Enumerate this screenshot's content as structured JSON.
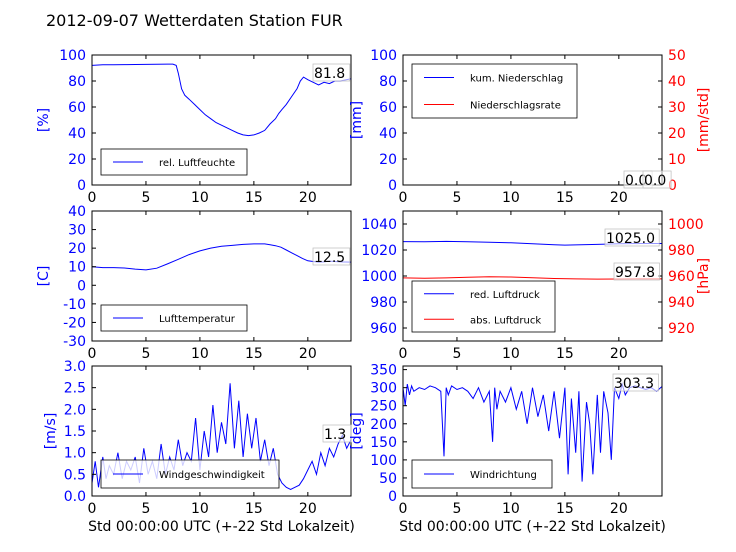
{
  "title": "2012-09-07 Wetterdaten Station FUR",
  "colors": {
    "blue": "#0000ff",
    "red": "#ff0000",
    "black": "#000000",
    "panel_border": "#000000"
  },
  "chart_data": [
    {
      "id": "humidity",
      "type": "line",
      "x_range": [
        0,
        24
      ],
      "x_ticks": [
        0,
        5,
        10,
        15,
        20
      ],
      "ylabel": "[%]",
      "ylabel_color": "blue",
      "ylim": [
        0,
        100
      ],
      "y_ticks": [
        0,
        20,
        40,
        60,
        80,
        100
      ],
      "tick_color": "blue",
      "last_value_label": "81.8",
      "series": [
        {
          "name": "rel. Luftfeuchte",
          "color": "blue",
          "x": [
            0,
            1,
            2,
            3,
            4,
            5,
            6,
            7,
            7.5,
            7.8,
            8,
            8.3,
            8.6,
            9,
            9.5,
            10,
            10.5,
            11,
            11.5,
            12,
            12.5,
            13,
            13.5,
            14,
            14.5,
            15,
            15.5,
            16,
            16.5,
            17,
            17.3,
            17.6,
            18,
            18.5,
            19,
            19.3,
            19.6,
            20,
            20.5,
            21,
            21.5,
            22,
            22.5,
            23,
            24
          ],
          "values": [
            92,
            92.5,
            92.5,
            92.6,
            92.7,
            92.8,
            92.9,
            93,
            93,
            92,
            86,
            74,
            69,
            66,
            62,
            58,
            54,
            51,
            48,
            46,
            44,
            42,
            40,
            38.5,
            38,
            38.5,
            40,
            42,
            47,
            51,
            55,
            58,
            62,
            68,
            74,
            80,
            83,
            81,
            79,
            77,
            79,
            78,
            80,
            80,
            81.8
          ]
        }
      ]
    },
    {
      "id": "precipitation",
      "type": "line",
      "x_range": [
        0,
        24
      ],
      "x_ticks": [
        0,
        5,
        10,
        15,
        20
      ],
      "ylabel": "[mm]",
      "ylabel_color": "blue",
      "ylim": [
        0,
        100
      ],
      "y_ticks": [
        0,
        20,
        40,
        60,
        80,
        100
      ],
      "tick_color": "blue",
      "ylabel_right": "[mm/std]",
      "ylim_right": [
        0,
        50
      ],
      "y_ticks_right": [
        0,
        10,
        20,
        30,
        40,
        50
      ],
      "last_value_label": "0.0",
      "last_value_label_2": "0.0",
      "series": [
        {
          "name": "kum. Niederschlag",
          "color": "blue",
          "axis": "left",
          "x": [
            0,
            24
          ],
          "values": [
            0,
            0
          ]
        },
        {
          "name": "Niederschlagsrate",
          "color": "red",
          "axis": "right",
          "x": [
            0,
            24
          ],
          "values": [
            0,
            0
          ]
        }
      ]
    },
    {
      "id": "temperature",
      "type": "line",
      "x_range": [
        0,
        24
      ],
      "x_ticks": [
        0,
        5,
        10,
        15,
        20
      ],
      "ylabel": "[C]",
      "ylabel_color": "blue",
      "ylim": [
        -30,
        40
      ],
      "y_ticks": [
        -30,
        -20,
        -10,
        0,
        10,
        20,
        30,
        40
      ],
      "tick_color": "blue",
      "last_value_label": "12.5",
      "series": [
        {
          "name": "Lufttemperatur",
          "color": "blue",
          "x": [
            0,
            1,
            2,
            3,
            4,
            5,
            6,
            7,
            8,
            9,
            10,
            11,
            12,
            13,
            14,
            15,
            16,
            16.5,
            17,
            17.5,
            18,
            18.5,
            19,
            19.5,
            20,
            20.5,
            21,
            21.5,
            22,
            22.5,
            23,
            24
          ],
          "values": [
            10,
            9.5,
            9.5,
            9.3,
            8.7,
            8.3,
            9.2,
            11.5,
            14,
            16.5,
            18.5,
            20,
            21,
            21.5,
            22,
            22.3,
            22.3,
            21.8,
            21.3,
            20.5,
            19,
            17.5,
            16,
            14.5,
            13.2,
            12.8,
            12.5,
            12.6,
            13,
            12.8,
            12.6,
            12.5
          ]
        }
      ]
    },
    {
      "id": "pressure",
      "type": "line",
      "x_range": [
        0,
        24
      ],
      "x_ticks": [
        0,
        5,
        10,
        15,
        20
      ],
      "ylim": [
        950,
        1050
      ],
      "y_ticks": [
        960,
        980,
        1000,
        1020,
        1040
      ],
      "tick_color": "blue",
      "ylabel_right": "[hPa]",
      "ylim_right": [
        910,
        1010
      ],
      "y_ticks_right": [
        920,
        940,
        960,
        980,
        1000
      ],
      "last_value_label": "1025.0",
      "last_value_label_2": "957.8",
      "series": [
        {
          "name": "red. Luftdruck",
          "color": "blue",
          "axis": "left",
          "x": [
            0,
            2,
            4,
            6,
            8,
            10,
            12,
            14,
            15,
            16,
            18,
            20,
            22,
            24
          ],
          "values": [
            1026.5,
            1026.3,
            1026.6,
            1026.3,
            1026,
            1025.5,
            1024.8,
            1024,
            1023.8,
            1023.9,
            1024.3,
            1024.8,
            1025,
            1025
          ]
        },
        {
          "name": "abs. Luftdruck",
          "color": "red",
          "axis": "right",
          "x": [
            0,
            2,
            4,
            6,
            8,
            10,
            12,
            14,
            16,
            18,
            20,
            22,
            24
          ],
          "values": [
            958.5,
            958.3,
            958.5,
            959,
            959.4,
            959.2,
            958.7,
            958.1,
            957.8,
            957.6,
            957.7,
            957.8,
            957.8
          ]
        }
      ]
    },
    {
      "id": "windspeed",
      "type": "line",
      "x_range": [
        0,
        24
      ],
      "x_ticks": [
        0,
        5,
        10,
        15,
        20
      ],
      "xlabel": "Std 00:00:00 UTC (+-22 Std Lokalzeit)",
      "ylabel": "[m/s]",
      "ylabel_color": "blue",
      "ylim": [
        0,
        3.0
      ],
      "y_ticks": [
        "0.0",
        "0.5",
        "1.0",
        "1.5",
        "2.0",
        "2.5",
        "3.0"
      ],
      "tick_color": "blue",
      "last_value_label": "1.3",
      "series": [
        {
          "name": "Windgeschwindigkeit",
          "color": "blue",
          "x": [
            0,
            0.3,
            0.6,
            1,
            1.3,
            1.6,
            2,
            2.4,
            2.8,
            3.2,
            3.6,
            4,
            4.4,
            4.8,
            5.2,
            5.6,
            6,
            6.4,
            6.8,
            7.2,
            7.6,
            8,
            8.4,
            8.8,
            9.2,
            9.6,
            10,
            10.4,
            10.8,
            11.2,
            11.6,
            12,
            12.4,
            12.8,
            13.2,
            13.6,
            14,
            14.4,
            14.8,
            15.2,
            15.6,
            16,
            16.4,
            16.8,
            17.2,
            17.6,
            18,
            18.4,
            18.8,
            19.2,
            19.6,
            20,
            20.4,
            20.8,
            21.2,
            21.6,
            22,
            22.4,
            22.8,
            23.2,
            23.6,
            24
          ],
          "values": [
            0.3,
            0.8,
            0.2,
            0.9,
            0.4,
            0.7,
            0.5,
            1.0,
            0.4,
            0.8,
            0.6,
            0.9,
            0.3,
            1.1,
            0.5,
            0.8,
            0.4,
            1.2,
            0.5,
            0.9,
            0.6,
            1.3,
            0.7,
            1.0,
            0.8,
            1.8,
            0.6,
            1.5,
            0.9,
            2.1,
            1.0,
            1.7,
            1.2,
            2.6,
            1.1,
            2.2,
            0.9,
            1.9,
            1.1,
            1.8,
            0.8,
            1.3,
            0.7,
            1.1,
            0.5,
            0.3,
            0.2,
            0.15,
            0.2,
            0.25,
            0.4,
            0.6,
            0.8,
            0.5,
            1.0,
            0.7,
            1.1,
            0.9,
            1.2,
            1.4,
            1.1,
            1.3
          ]
        }
      ]
    },
    {
      "id": "winddirection",
      "type": "line",
      "x_range": [
        0,
        24
      ],
      "x_ticks": [
        0,
        5,
        10,
        15,
        20
      ],
      "xlabel": "Std 00:00:00 UTC (+-22 Std Lokalzeit)",
      "ylabel": "[deg]",
      "ylabel_color": "blue",
      "ylim": [
        0,
        360
      ],
      "y_ticks": [
        0,
        50,
        100,
        150,
        200,
        250,
        300,
        350
      ],
      "tick_color": "blue",
      "last_value_label": "303.3",
      "series": [
        {
          "name": "Windrichtung",
          "color": "blue",
          "x": [
            0,
            0.2,
            0.4,
            0.6,
            0.8,
            1,
            1.5,
            2,
            2.5,
            3,
            3.5,
            3.8,
            4,
            4.2,
            4.5,
            5,
            5.5,
            6,
            6.5,
            7,
            7.5,
            8,
            8.3,
            8.5,
            8.7,
            9,
            9.5,
            10,
            10.5,
            11,
            11.5,
            12,
            12.5,
            13,
            13.5,
            14,
            14.5,
            15,
            15.3,
            15.6,
            16,
            16.3,
            16.6,
            17,
            17.3,
            17.6,
            18,
            18.3,
            18.6,
            19,
            19.3,
            19.6,
            20,
            20.3,
            20.6,
            21,
            21.5,
            22,
            22.5,
            23,
            23.5,
            24
          ],
          "values": [
            300,
            250,
            310,
            280,
            305,
            290,
            300,
            295,
            305,
            300,
            290,
            110,
            300,
            280,
            305,
            295,
            300,
            290,
            270,
            300,
            260,
            290,
            150,
            300,
            240,
            290,
            260,
            300,
            240,
            290,
            200,
            300,
            220,
            280,
            180,
            290,
            160,
            300,
            60,
            270,
            120,
            290,
            40,
            260,
            200,
            60,
            280,
            120,
            290,
            230,
            100,
            300,
            270,
            310,
            280,
            300,
            305,
            300,
            295,
            300,
            290,
            303.3
          ]
        }
      ]
    }
  ]
}
